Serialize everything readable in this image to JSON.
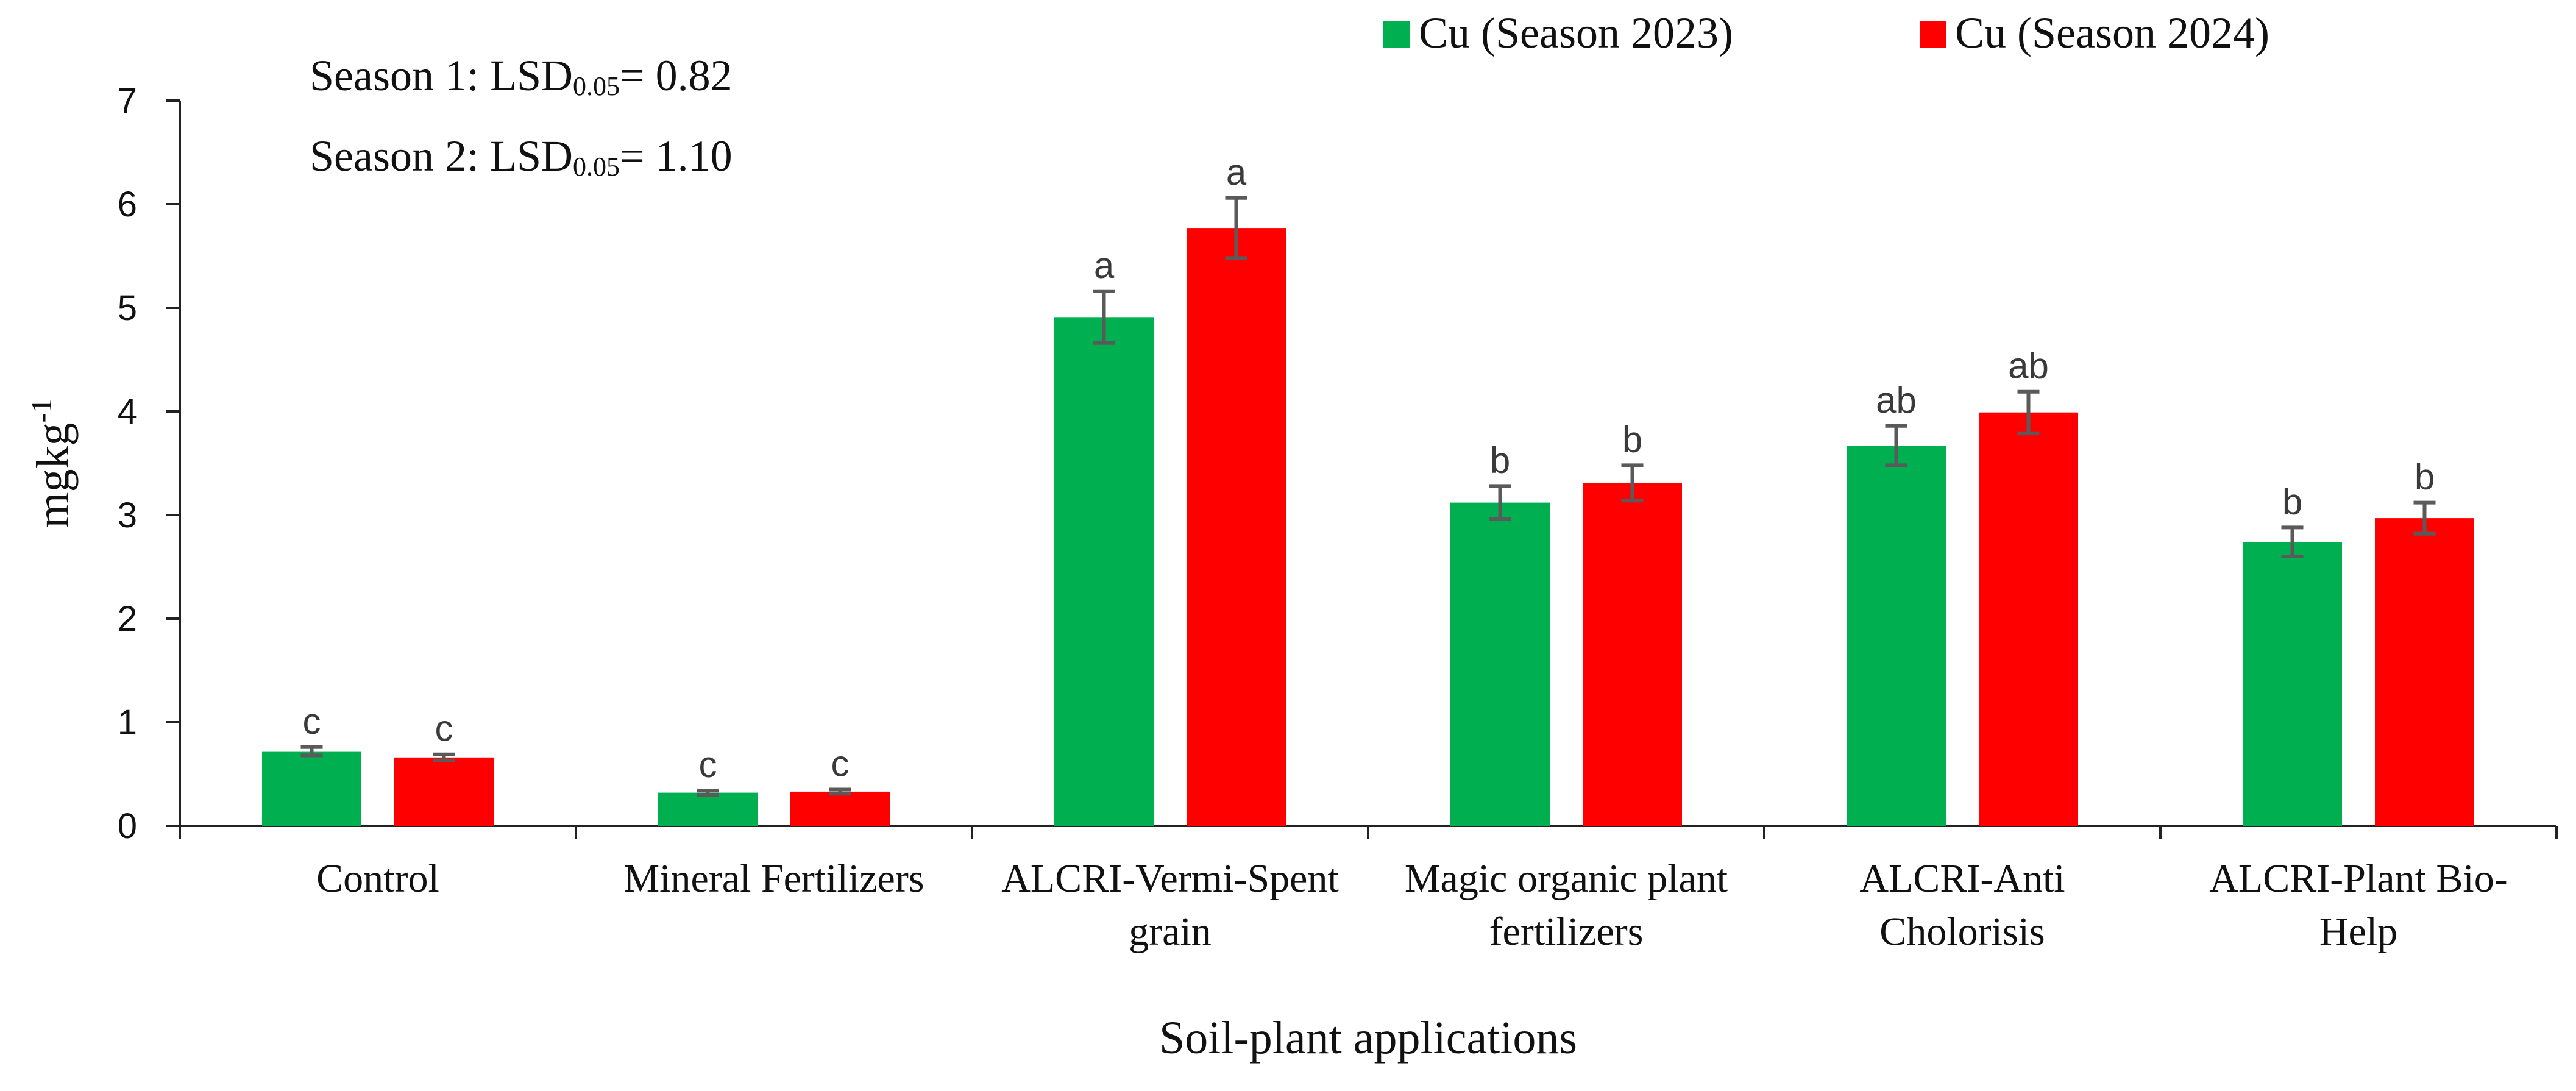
{
  "chart_data": {
    "type": "bar",
    "title": "",
    "xlabel": "Soil-plant applications",
    "ylabel": "mgkg",
    "ylabel_superscript": "-1",
    "ylim": [
      0,
      7
    ],
    "yticks": [
      0,
      1,
      2,
      3,
      4,
      5,
      6,
      7
    ],
    "grid": false,
    "legend_position": "top-right",
    "categories": [
      [
        "Control"
      ],
      [
        "Mineral Fertilizers"
      ],
      [
        "ALCRI-Vermi-Spent",
        "grain"
      ],
      [
        "Magic organic plant",
        "fertilizers"
      ],
      [
        "ALCRI-Anti",
        "Cholorisis"
      ],
      [
        "ALCRI-Plant Bio-",
        "Help"
      ]
    ],
    "series": [
      {
        "name": "Cu (Season 2023)",
        "color": "#00b050",
        "values": [
          0.72,
          0.32,
          4.91,
          3.12,
          3.67,
          2.74
        ],
        "errors": [
          0.04,
          0.02,
          0.25,
          0.16,
          0.19,
          0.14
        ],
        "letters": [
          "c",
          "c",
          "a",
          "b",
          "ab",
          "b"
        ]
      },
      {
        "name": "Cu (Season 2024)",
        "color": "#ff0000",
        "values": [
          0.66,
          0.33,
          5.77,
          3.31,
          3.99,
          2.97
        ],
        "errors": [
          0.03,
          0.02,
          0.29,
          0.17,
          0.2,
          0.15
        ],
        "letters": [
          "c",
          "c",
          "a",
          "b",
          "ab",
          "b"
        ]
      }
    ],
    "annotations": [
      {
        "prefix": "Season 1: LSD",
        "subscript": "0.05",
        "suffix": "= 0.82"
      },
      {
        "prefix": "Season 2: LSD",
        "subscript": "0.05",
        "suffix": "= 1.10"
      }
    ]
  }
}
